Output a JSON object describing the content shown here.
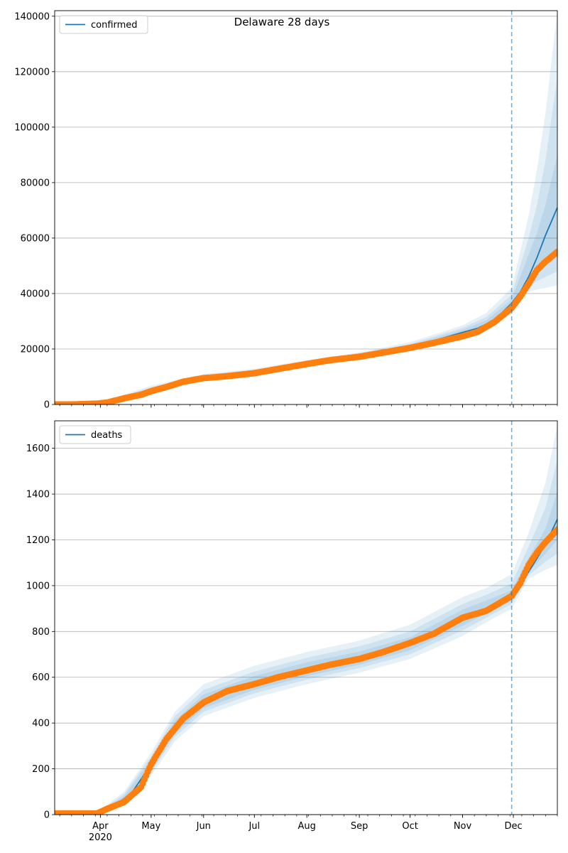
{
  "title": "Delaware 28 days",
  "colors": {
    "model": "#1f77b4",
    "observed": "#ff7f0e",
    "band": "#1f77b4",
    "grid": "#b0b0b0",
    "forecast_line": "#1f77b4"
  },
  "x_axis": {
    "month_labels": [
      "Apr",
      "May",
      "Jun",
      "Jul",
      "Aug",
      "Sep",
      "Oct",
      "Nov",
      "Dec"
    ],
    "year_label": "2020"
  },
  "chart_data": [
    {
      "type": "line",
      "series_name": "confirmed",
      "legend": "confirmed",
      "xlim": [
        "2020-03-05",
        "2020-12-27"
      ],
      "ylim": [
        0,
        142000
      ],
      "yticks": [
        0,
        20000,
        40000,
        60000,
        80000,
        100000,
        120000,
        140000
      ],
      "grid": "horizontal",
      "legend_position": "upper-left",
      "forecast_start": "2020-11-30",
      "model": {
        "x": [
          "2020-03-05",
          "2020-03-20",
          "2020-04-01",
          "2020-04-15",
          "2020-05-01",
          "2020-05-15",
          "2020-06-01",
          "2020-06-15",
          "2020-07-01",
          "2020-07-15",
          "2020-08-01",
          "2020-08-15",
          "2020-09-01",
          "2020-09-15",
          "2020-10-01",
          "2020-10-15",
          "2020-11-01",
          "2020-11-10",
          "2020-11-20",
          "2020-11-30",
          "2020-12-05",
          "2020-12-10",
          "2020-12-15",
          "2020-12-20",
          "2020-12-27"
        ],
        "y": [
          0,
          0,
          300,
          2200,
          5000,
          8000,
          9800,
          10500,
          11500,
          13000,
          14700,
          16200,
          17600,
          19000,
          20800,
          23000,
          26000,
          27500,
          30500,
          36500,
          40500,
          46000,
          53000,
          61000,
          71000
        ]
      },
      "bands": [
        {
          "x": [
            "2020-03-05",
            "2020-04-01",
            "2020-05-01",
            "2020-06-01",
            "2020-07-01",
            "2020-08-01",
            "2020-09-01",
            "2020-10-01",
            "2020-11-01",
            "2020-11-15",
            "2020-11-30",
            "2020-12-05",
            "2020-12-10",
            "2020-12-15",
            "2020-12-20",
            "2020-12-27"
          ],
          "lower": [
            0,
            200,
            3800,
            8900,
            10700,
            13800,
            16800,
            19800,
            24800,
            27200,
            32500,
            38000,
            40500,
            41500,
            42000,
            43000
          ],
          "upper": [
            0,
            700,
            6800,
            11000,
            12900,
            16000,
            18800,
            22500,
            28500,
            33000,
            42000,
            55000,
            68000,
            85000,
            105000,
            142000
          ]
        },
        {
          "x": [
            "2020-03-05",
            "2020-04-01",
            "2020-05-01",
            "2020-06-01",
            "2020-07-01",
            "2020-08-01",
            "2020-09-01",
            "2020-10-01",
            "2020-11-01",
            "2020-11-15",
            "2020-11-30",
            "2020-12-05",
            "2020-12-10",
            "2020-12-15",
            "2020-12-20",
            "2020-12-27"
          ],
          "lower": [
            0,
            250,
            4200,
            9200,
            11000,
            14100,
            17000,
            20100,
            25200,
            28000,
            33800,
            39500,
            42500,
            44500,
            46000,
            48000
          ],
          "upper": [
            0,
            600,
            6200,
            10600,
            12500,
            15600,
            18500,
            21900,
            27600,
            31500,
            39500,
            50000,
            60000,
            72000,
            88000,
            118000
          ]
        },
        {
          "x": [
            "2020-03-05",
            "2020-04-01",
            "2020-05-01",
            "2020-06-01",
            "2020-07-01",
            "2020-08-01",
            "2020-09-01",
            "2020-10-01",
            "2020-11-01",
            "2020-11-15",
            "2020-11-30",
            "2020-12-05",
            "2020-12-10",
            "2020-12-15",
            "2020-12-20",
            "2020-12-27"
          ],
          "lower": [
            0,
            270,
            4500,
            9400,
            11200,
            14300,
            17200,
            20400,
            25500,
            28600,
            35000,
            41000,
            45000,
            48000,
            51000,
            56000
          ],
          "upper": [
            0,
            500,
            5700,
            10300,
            12100,
            15200,
            18100,
            21400,
            26900,
            30300,
            37800,
            46000,
            54000,
            62000,
            72000,
            90000
          ]
        }
      ],
      "observed": {
        "x": [
          "2020-03-05",
          "2020-03-15",
          "2020-03-30",
          "2020-04-05",
          "2020-04-15",
          "2020-04-25",
          "2020-05-01",
          "2020-05-10",
          "2020-05-20",
          "2020-06-01",
          "2020-06-15",
          "2020-07-01",
          "2020-07-15",
          "2020-08-01",
          "2020-08-15",
          "2020-09-01",
          "2020-09-15",
          "2020-10-01",
          "2020-10-15",
          "2020-11-01",
          "2020-11-10",
          "2020-11-20",
          "2020-11-30",
          "2020-12-05",
          "2020-12-10",
          "2020-12-15",
          "2020-12-20",
          "2020-12-27"
        ],
        "y": [
          0,
          0,
          300,
          700,
          2200,
          3500,
          4800,
          6300,
          8200,
          9500,
          10200,
          11300,
          12800,
          14600,
          16000,
          17200,
          18700,
          20400,
          22200,
          24600,
          26200,
          29800,
          34800,
          38800,
          43500,
          48500,
          51500,
          55000
        ]
      }
    },
    {
      "type": "line",
      "series_name": "deaths",
      "legend": "deaths",
      "xlim": [
        "2020-03-05",
        "2020-12-27"
      ],
      "ylim": [
        0,
        1720
      ],
      "yticks": [
        0,
        200,
        400,
        600,
        800,
        1000,
        1200,
        1400,
        1600
      ],
      "grid": "horizontal",
      "legend_position": "upper-left",
      "forecast_start": "2020-11-30",
      "model": {
        "x": [
          "2020-03-05",
          "2020-03-31",
          "2020-04-10",
          "2020-04-20",
          "2020-05-01",
          "2020-05-10",
          "2020-05-20",
          "2020-06-01",
          "2020-06-15",
          "2020-07-01",
          "2020-07-15",
          "2020-08-01",
          "2020-08-15",
          "2020-09-01",
          "2020-09-15",
          "2020-10-01",
          "2020-10-15",
          "2020-11-01",
          "2020-11-15",
          "2020-11-30",
          "2020-12-05",
          "2020-12-10",
          "2020-12-15",
          "2020-12-20",
          "2020-12-27"
        ],
        "y": [
          0,
          5,
          40,
          100,
          220,
          330,
          420,
          490,
          535,
          565,
          595,
          625,
          655,
          680,
          710,
          750,
          800,
          865,
          900,
          950,
          1000,
          1060,
          1120,
          1180,
          1290
        ]
      },
      "bands": [
        {
          "x": [
            "2020-03-05",
            "2020-03-31",
            "2020-04-15",
            "2020-05-01",
            "2020-05-15",
            "2020-06-01",
            "2020-07-01",
            "2020-08-01",
            "2020-09-01",
            "2020-10-01",
            "2020-11-01",
            "2020-11-15",
            "2020-11-30",
            "2020-12-10",
            "2020-12-20",
            "2020-12-27"
          ],
          "lower": [
            0,
            0,
            40,
            170,
            320,
            430,
            510,
            570,
            620,
            680,
            780,
            840,
            900,
            1030,
            1070,
            1090
          ],
          "upper": [
            0,
            15,
            100,
            270,
            450,
            570,
            650,
            710,
            760,
            830,
            950,
            990,
            1050,
            1230,
            1450,
            1700
          ]
        },
        {
          "x": [
            "2020-03-05",
            "2020-03-31",
            "2020-04-15",
            "2020-05-01",
            "2020-05-15",
            "2020-06-01",
            "2020-07-01",
            "2020-08-01",
            "2020-09-01",
            "2020-10-01",
            "2020-11-01",
            "2020-11-15",
            "2020-11-30",
            "2020-12-10",
            "2020-12-20",
            "2020-12-27"
          ],
          "lower": [
            0,
            2,
            50,
            185,
            340,
            450,
            530,
            590,
            640,
            700,
            805,
            860,
            920,
            1045,
            1105,
            1140
          ],
          "upper": [
            0,
            12,
            90,
            255,
            430,
            545,
            625,
            685,
            735,
            800,
            920,
            960,
            1010,
            1170,
            1340,
            1550
          ]
        },
        {
          "x": [
            "2020-03-05",
            "2020-03-31",
            "2020-04-15",
            "2020-05-01",
            "2020-05-15",
            "2020-06-01",
            "2020-07-01",
            "2020-08-01",
            "2020-09-01",
            "2020-10-01",
            "2020-11-01",
            "2020-11-15",
            "2020-11-30",
            "2020-12-10",
            "2020-12-20",
            "2020-12-27"
          ],
          "lower": [
            0,
            3,
            58,
            200,
            355,
            465,
            545,
            605,
            655,
            718,
            825,
            878,
            935,
            1060,
            1140,
            1200
          ],
          "upper": [
            0,
            9,
            80,
            240,
            410,
            525,
            605,
            665,
            712,
            775,
            895,
            935,
            980,
            1120,
            1250,
            1410
          ]
        }
      ],
      "observed": {
        "x": [
          "2020-03-05",
          "2020-03-30",
          "2020-04-05",
          "2020-04-15",
          "2020-04-25",
          "2020-05-01",
          "2020-05-10",
          "2020-05-20",
          "2020-06-01",
          "2020-06-15",
          "2020-07-01",
          "2020-07-15",
          "2020-08-01",
          "2020-08-15",
          "2020-09-01",
          "2020-09-15",
          "2020-10-01",
          "2020-10-15",
          "2020-11-01",
          "2020-11-15",
          "2020-11-30",
          "2020-12-05",
          "2020-12-10",
          "2020-12-15",
          "2020-12-20",
          "2020-12-27"
        ],
        "y": [
          5,
          5,
          25,
          55,
          120,
          220,
          330,
          420,
          490,
          540,
          570,
          600,
          630,
          655,
          680,
          710,
          750,
          790,
          860,
          890,
          955,
          1010,
          1090,
          1145,
          1190,
          1245
        ]
      }
    }
  ]
}
